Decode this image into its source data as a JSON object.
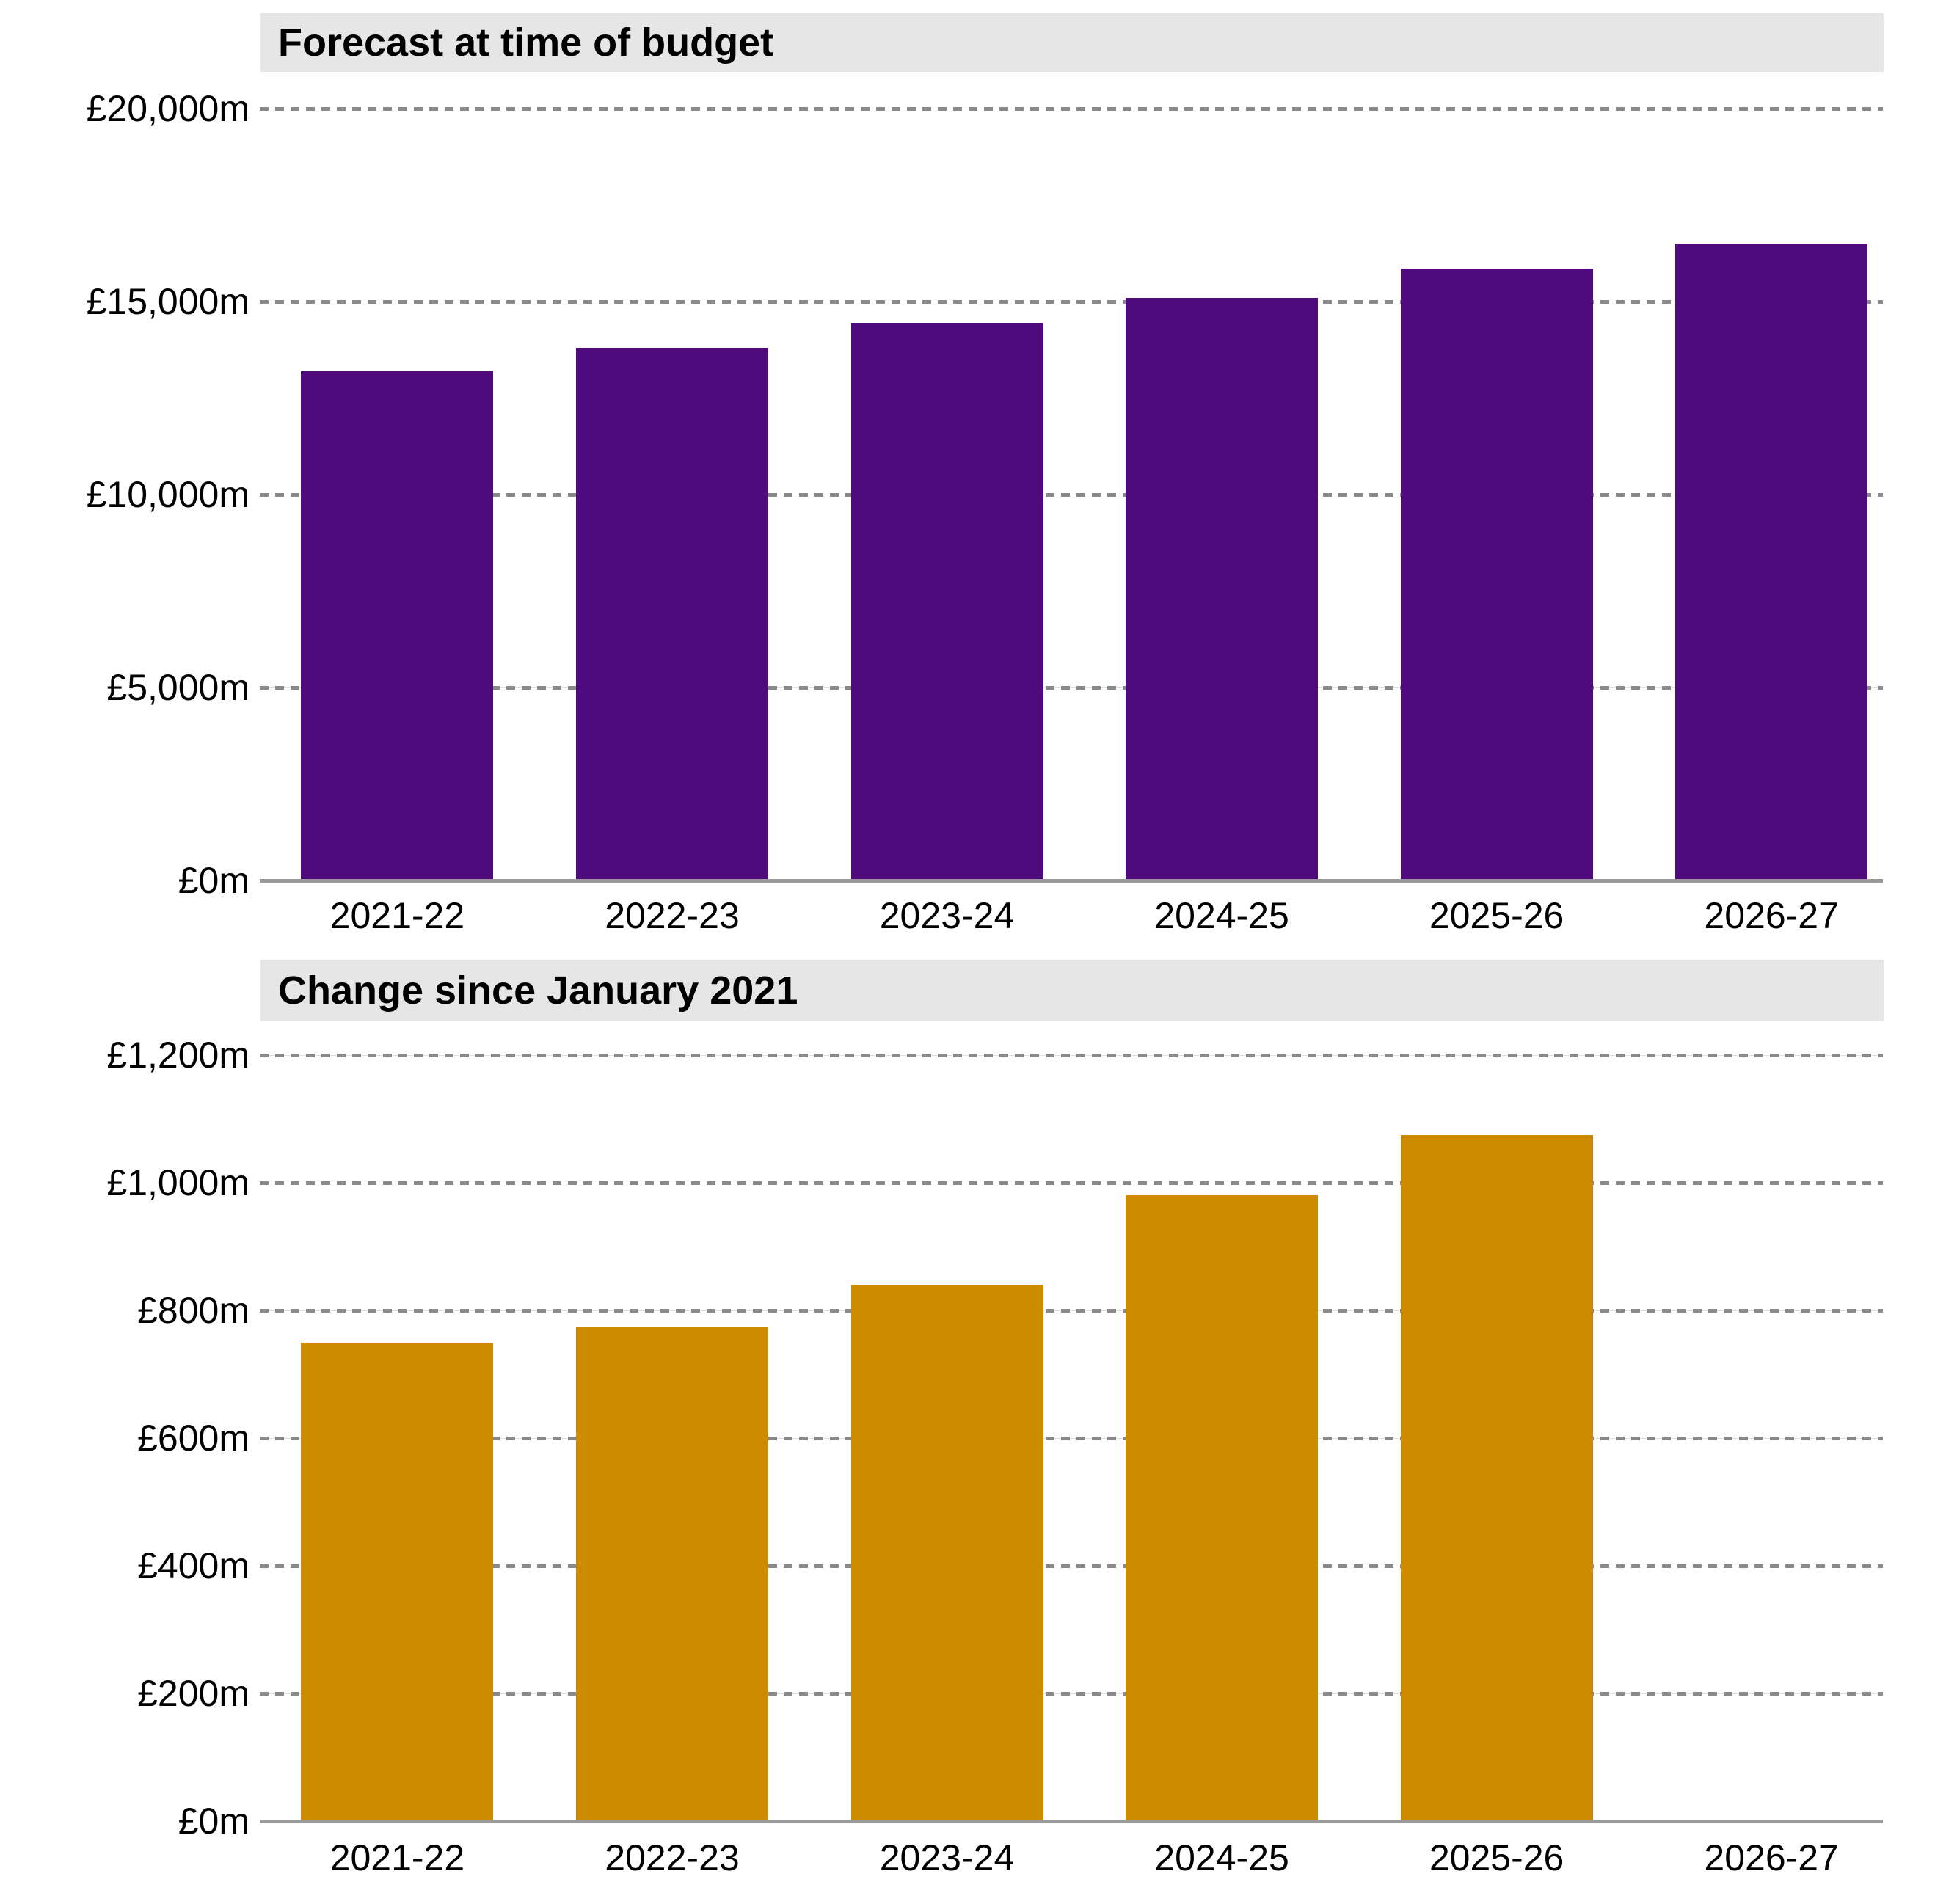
{
  "chart_data": [
    {
      "type": "bar",
      "title": "Forecast at time of budget",
      "categories": [
        "2021-22",
        "2022-23",
        "2023-24",
        "2024-25",
        "2025-26",
        "2026-27"
      ],
      "values": [
        13200,
        13800,
        14450,
        15100,
        15850,
        16500
      ],
      "xlabel": "",
      "ylabel": "",
      "unit": "£m",
      "ylim": [
        0,
        20000
      ],
      "y_tick_step": 5000,
      "y_tick_labels": [
        "£0m",
        "£5,000m",
        "£10,000m",
        "£15,000m",
        "£20,000m"
      ],
      "bar_color": "#4f0a7d",
      "grid": "horizontal-dashed",
      "legend": "none"
    },
    {
      "type": "bar",
      "title": "Change since January 2021",
      "categories": [
        "2021-22",
        "2022-23",
        "2023-24",
        "2024-25",
        "2025-26",
        "2026-27"
      ],
      "values": [
        750,
        775,
        840,
        980,
        1075,
        null
      ],
      "xlabel": "",
      "ylabel": "",
      "unit": "£m",
      "ylim": [
        0,
        1200
      ],
      "y_tick_step": 200,
      "y_tick_labels": [
        "£0m",
        "£200m",
        "£400m",
        "£600m",
        "£800m",
        "£1,000m",
        "£1,200m"
      ],
      "bar_color": "#cd8b00",
      "grid": "horizontal-dashed",
      "legend": "none"
    }
  ],
  "styles": {
    "title_band_color": "#e6e6e6",
    "grid_dash_color": "#8a8a8a",
    "grid_faint_color": "#e0e0e0",
    "axis_line_color": "#9a9a9a",
    "text_color": "#000000",
    "purple_bar_color": "#4f0a7d",
    "orange_bar_color": "#cd8b00",
    "background_color": "#ffffff"
  }
}
